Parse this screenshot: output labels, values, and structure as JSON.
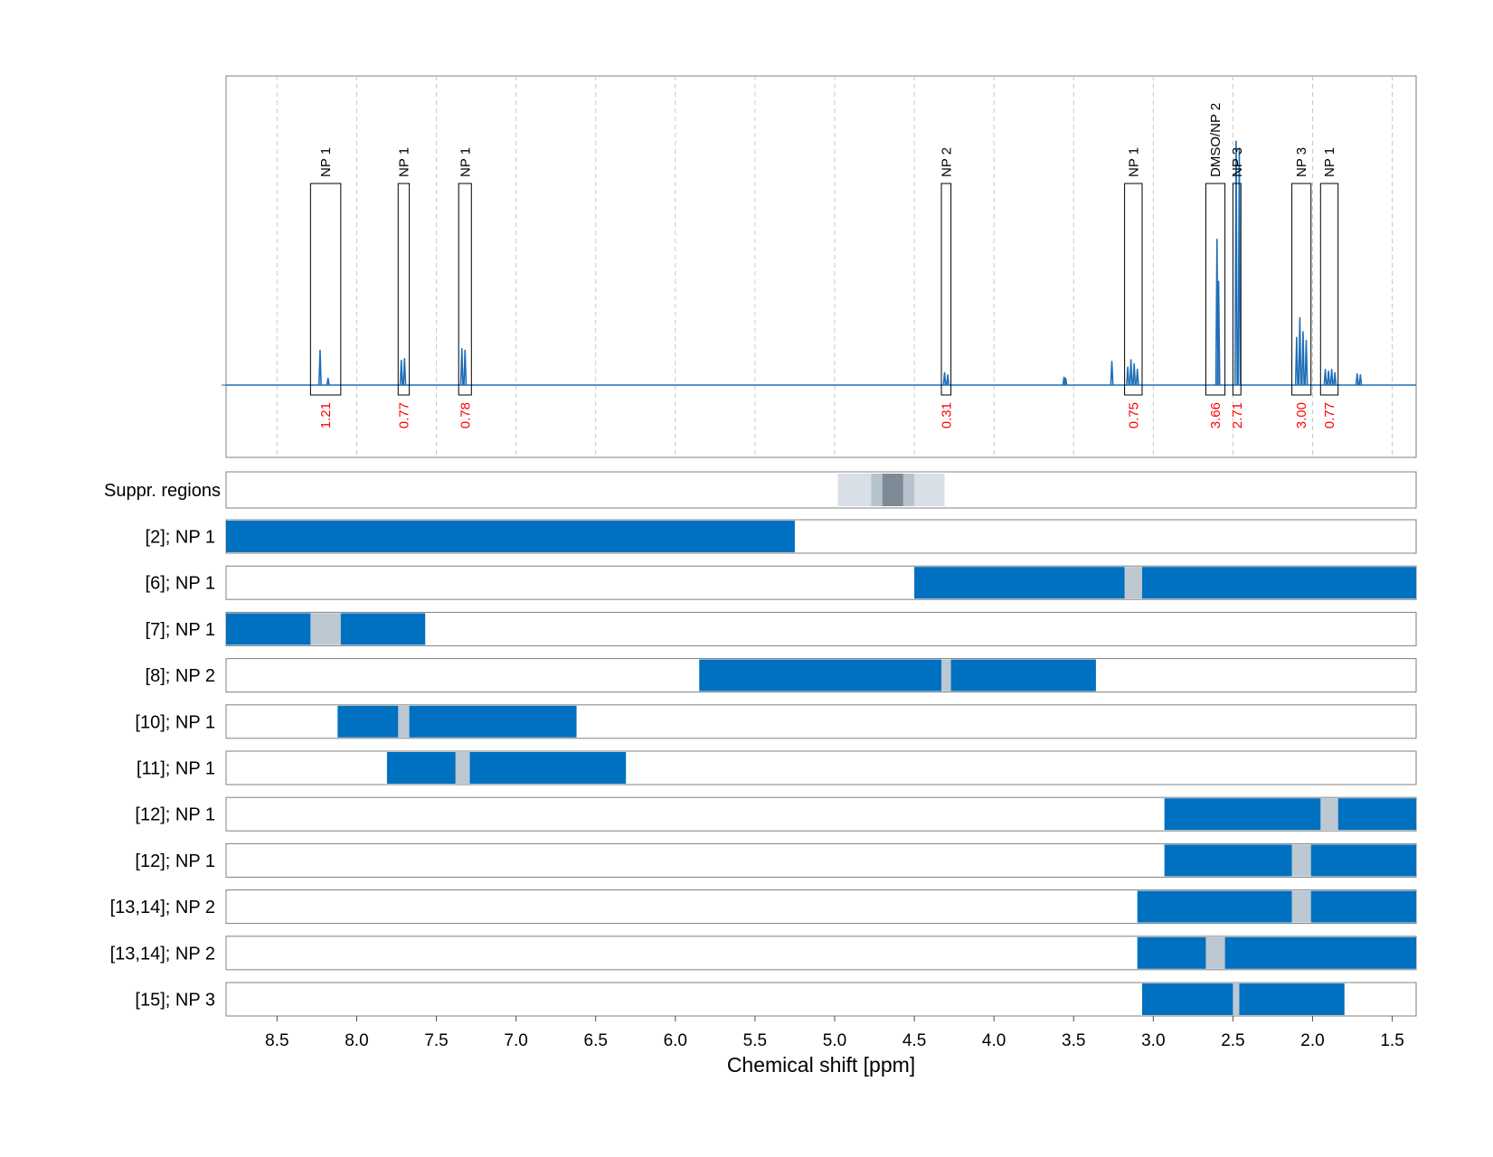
{
  "chart_data": {
    "type": "nmr-spectrum-with-region-bars",
    "xlabel": "Chemical shift [ppm]",
    "xlim": [
      8.82,
      1.35
    ],
    "x_reversed": true,
    "x_ticks": [
      8.5,
      8.0,
      7.5,
      7.0,
      6.5,
      6.0,
      5.5,
      5.0,
      4.5,
      4.0,
      3.5,
      3.0,
      2.5,
      2.0,
      1.5
    ],
    "x_tick_labels": [
      "8.5",
      "8.0",
      "7.5",
      "7.0",
      "6.5",
      "6.0",
      "5.5",
      "5.0",
      "4.5",
      "4.0",
      "3.5",
      "3.0",
      "2.5",
      "2.0",
      "1.5"
    ],
    "grid": true,
    "colors": {
      "bar": "#0070c0",
      "gap": "#bcc8d2",
      "spectrum": "#1f6fb8",
      "integral": "#ff0000",
      "suppr_light": "#d8dfe6",
      "suppr_mid": "#b6c2cc",
      "suppr_dark": "#7d8b97"
    },
    "spectrum": {
      "peaks": [
        {
          "ppm": 8.23,
          "height": 0.62
        },
        {
          "ppm": 8.18,
          "height": 0.12
        },
        {
          "ppm": 7.72,
          "height": 0.44
        },
        {
          "ppm": 7.7,
          "height": 0.47
        },
        {
          "ppm": 7.34,
          "height": 0.65
        },
        {
          "ppm": 7.32,
          "height": 0.62
        },
        {
          "ppm": 4.31,
          "height": 0.22
        },
        {
          "ppm": 4.29,
          "height": 0.18
        },
        {
          "ppm": 3.56,
          "height": 0.14
        },
        {
          "ppm": 3.55,
          "height": 0.12
        },
        {
          "ppm": 3.26,
          "height": 0.42
        },
        {
          "ppm": 3.16,
          "height": 0.32
        },
        {
          "ppm": 3.14,
          "height": 0.45
        },
        {
          "ppm": 3.12,
          "height": 0.38
        },
        {
          "ppm": 3.1,
          "height": 0.28
        },
        {
          "ppm": 2.6,
          "height": 2.6
        },
        {
          "ppm": 2.59,
          "height": 1.85
        },
        {
          "ppm": 2.48,
          "height": 4.35
        },
        {
          "ppm": 2.46,
          "height": 4.2
        },
        {
          "ppm": 2.1,
          "height": 0.85
        },
        {
          "ppm": 2.08,
          "height": 1.2
        },
        {
          "ppm": 2.06,
          "height": 0.95
        },
        {
          "ppm": 2.04,
          "height": 0.8
        },
        {
          "ppm": 1.92,
          "height": 0.28
        },
        {
          "ppm": 1.9,
          "height": 0.25
        },
        {
          "ppm": 1.88,
          "height": 0.28
        },
        {
          "ppm": 1.86,
          "height": 0.22
        },
        {
          "ppm": 1.72,
          "height": 0.2
        },
        {
          "ppm": 1.7,
          "height": 0.18
        }
      ],
      "y_max": 4.8
    },
    "annotations": [
      {
        "label": "NP 1",
        "from": 8.29,
        "to": 8.1,
        "integral": "1.21"
      },
      {
        "label": "NP 1",
        "from": 7.74,
        "to": 7.67,
        "integral": "0.77"
      },
      {
        "label": "NP 1",
        "from": 7.36,
        "to": 7.28,
        "integral": "0.78"
      },
      {
        "label": "NP 2",
        "from": 4.33,
        "to": 4.27,
        "integral": "0.31"
      },
      {
        "label": "NP 1",
        "from": 3.18,
        "to": 3.07,
        "integral": "0.75"
      },
      {
        "label": "DMSO/NP 2",
        "from": 2.67,
        "to": 2.55,
        "integral": "3.66"
      },
      {
        "label": "NP 3",
        "from": 2.5,
        "to": 2.45,
        "integral": "2.71"
      },
      {
        "label": "NP 3",
        "from": 2.13,
        "to": 2.01,
        "integral": "3.00"
      },
      {
        "label": "NP 1",
        "from": 1.95,
        "to": 1.84,
        "integral": "0.77"
      }
    ],
    "suppression": {
      "label": "Suppr. regions",
      "regions": [
        {
          "from": 4.98,
          "to": 4.31,
          "level": "light"
        },
        {
          "from": 4.77,
          "to": 4.5,
          "level": "mid"
        },
        {
          "from": 4.7,
          "to": 4.57,
          "level": "dark"
        }
      ]
    },
    "rows": [
      {
        "label": "[2]; NP 1",
        "ranges": [
          [
            8.82,
            5.25
          ]
        ],
        "gaps": []
      },
      {
        "label": "[6]; NP 1",
        "ranges": [
          [
            4.5,
            3.18
          ],
          [
            3.07,
            1.35
          ]
        ],
        "gaps": [
          [
            3.18,
            3.07
          ]
        ]
      },
      {
        "label": "[7]; NP 1",
        "ranges": [
          [
            8.82,
            8.29
          ],
          [
            8.1,
            7.57
          ]
        ],
        "gaps": [
          [
            8.29,
            8.1
          ]
        ]
      },
      {
        "label": "[8]; NP 2",
        "ranges": [
          [
            5.85,
            4.33
          ],
          [
            4.27,
            3.36
          ]
        ],
        "gaps": [
          [
            4.33,
            4.27
          ]
        ]
      },
      {
        "label": "[10]; NP 1",
        "ranges": [
          [
            8.12,
            7.74
          ],
          [
            7.67,
            6.62
          ]
        ],
        "gaps": [
          [
            7.74,
            7.67
          ]
        ]
      },
      {
        "label": "[11]; NP 1",
        "ranges": [
          [
            7.81,
            7.38
          ],
          [
            7.29,
            6.31
          ]
        ],
        "gaps": [
          [
            7.38,
            7.29
          ]
        ]
      },
      {
        "label": "[12]; NP 1",
        "ranges": [
          [
            2.93,
            1.95
          ],
          [
            1.84,
            1.35
          ]
        ],
        "gaps": [
          [
            1.95,
            1.84
          ]
        ]
      },
      {
        "label": "[12]; NP 1",
        "ranges": [
          [
            2.93,
            2.13
          ],
          [
            2.01,
            1.35
          ]
        ],
        "gaps": [
          [
            2.13,
            2.01
          ]
        ]
      },
      {
        "label": "[13,14]; NP 2",
        "ranges": [
          [
            3.1,
            2.13
          ],
          [
            2.01,
            1.35
          ]
        ],
        "gaps": [
          [
            2.13,
            2.01
          ]
        ]
      },
      {
        "label": "[13,14]; NP 2",
        "ranges": [
          [
            3.1,
            2.67
          ],
          [
            2.55,
            1.35
          ]
        ],
        "gaps": [
          [
            2.67,
            2.55
          ]
        ]
      },
      {
        "label": "[15]; NP 3",
        "ranges": [
          [
            3.07,
            2.5
          ],
          [
            2.46,
            1.8
          ]
        ],
        "gaps": [
          [
            2.5,
            2.46
          ]
        ]
      }
    ]
  }
}
